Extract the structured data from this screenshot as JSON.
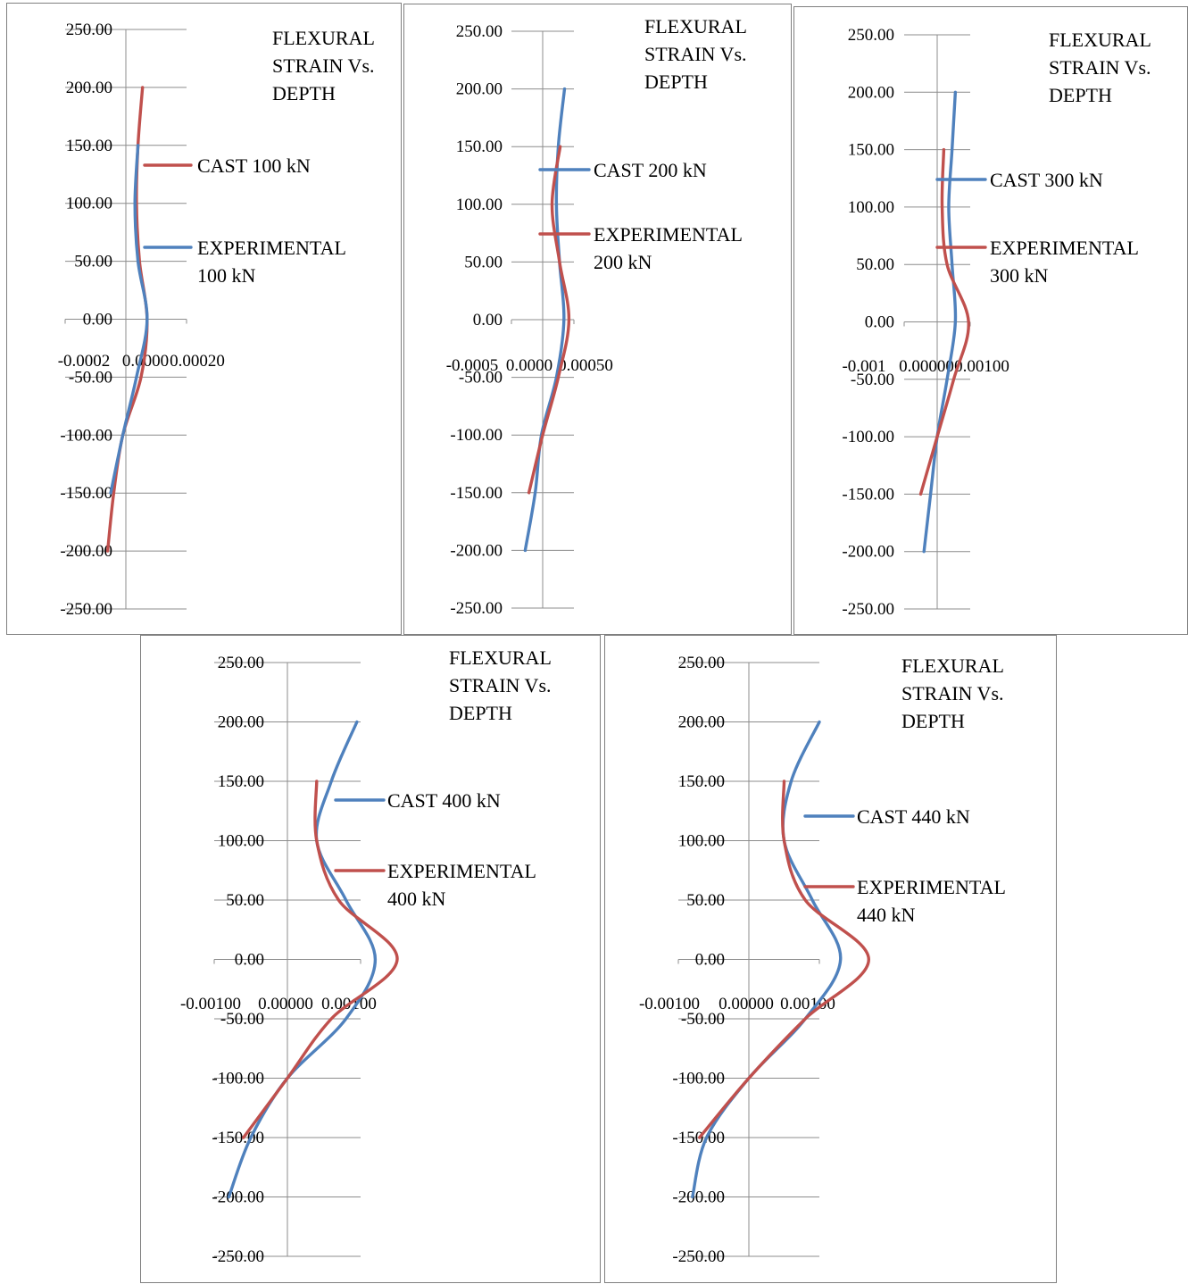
{
  "chart_data": [
    {
      "type": "line",
      "title_lines": [
        "FLEXURAL",
        "STRAIN Vs.",
        "DEPTH"
      ],
      "xlim": [
        -0.0002,
        0.0002
      ],
      "x_ticks": [
        "-0.0002",
        "0.0000",
        "0.00020"
      ],
      "ylim": [
        -250,
        250
      ],
      "y_ticks": [
        "250.00",
        "200.00",
        "150.00",
        "100.00",
        "50.00",
        "0.00",
        "-50.00",
        "-100.00",
        "-150.00",
        "-200.00",
        "-250.00"
      ],
      "grid": "horizontal",
      "series": [
        {
          "name_lines": [
            "CAST 100 kN"
          ],
          "color": "#c0504d",
          "points": [
            [
              5.5e-05,
              200
            ],
            [
              4e-05,
              150
            ],
            [
              3.5e-05,
              100
            ],
            [
              4.5e-05,
              50
            ],
            [
              7e-05,
              0
            ],
            [
              5e-05,
              -50
            ],
            [
              -1e-05,
              -100
            ],
            [
              -4e-05,
              -150
            ],
            [
              -6e-05,
              -200
            ]
          ]
        },
        {
          "name_lines": [
            "EXPERIMENTAL",
            "100 kN"
          ],
          "color": "#4f81bd",
          "points": [
            [
              4e-05,
              150
            ],
            [
              3e-05,
              100
            ],
            [
              4e-05,
              50
            ],
            [
              7e-05,
              0
            ],
            [
              3.5e-05,
              -50
            ],
            [
              -1e-05,
              -100
            ],
            [
              -5e-05,
              -150
            ]
          ]
        }
      ]
    },
    {
      "type": "line",
      "title_lines": [
        "FLEXURAL",
        "STRAIN Vs.",
        "DEPTH"
      ],
      "xlim": [
        -0.0005,
        0.0005
      ],
      "x_ticks": [
        "-0.0005",
        "0.0000",
        "0.00050"
      ],
      "ylim": [
        -250,
        250
      ],
      "y_ticks": [
        "250.00",
        "200.00",
        "150.00",
        "100.00",
        "50.00",
        "0.00",
        "-50.00",
        "-100.00",
        "-150.00",
        "-200.00",
        "-250.00"
      ],
      "grid": "horizontal",
      "series": [
        {
          "name_lines": [
            "CAST 200 kN"
          ],
          "color": "#4f81bd",
          "points": [
            [
              0.00035,
              200
            ],
            [
              0.00025,
              150
            ],
            [
              0.00022,
              100
            ],
            [
              0.00027,
              50
            ],
            [
              0.00034,
              0
            ],
            [
              0.00022,
              -50
            ],
            [
              -2e-05,
              -100
            ],
            [
              -0.00012,
              -150
            ],
            [
              -0.00028,
              -200
            ]
          ]
        },
        {
          "name_lines": [
            "EXPERIMENTAL",
            "200 kN"
          ],
          "color": "#c0504d",
          "points": [
            [
              0.00028,
              150
            ],
            [
              0.00015,
              100
            ],
            [
              0.00027,
              50
            ],
            [
              0.00042,
              0
            ],
            [
              0.00025,
              -50
            ],
            [
              0.0,
              -100
            ],
            [
              -0.00022,
              -150
            ]
          ]
        }
      ]
    },
    {
      "type": "line",
      "title_lines": [
        "FLEXURAL",
        "STRAIN Vs.",
        "DEPTH"
      ],
      "xlim": [
        -0.001,
        0.001
      ],
      "x_ticks": [
        "-0.001",
        "0.00000",
        "0.00100"
      ],
      "ylim": [
        -250,
        250
      ],
      "y_ticks": [
        "250.00",
        "200.00",
        "150.00",
        "100.00",
        "50.00",
        "0.00",
        "-50.00",
        "-100.00",
        "-150.00",
        "-200.00",
        "-250.00"
      ],
      "grid": "horizontal",
      "series": [
        {
          "name_lines": [
            "CAST 300 kN"
          ],
          "color": "#4f81bd",
          "points": [
            [
              0.00055,
              200
            ],
            [
              0.00045,
              150
            ],
            [
              0.00035,
              100
            ],
            [
              0.00045,
              50
            ],
            [
              0.00055,
              0
            ],
            [
              0.0003,
              -50
            ],
            [
              0.0,
              -100
            ],
            [
              -0.0002,
              -150
            ],
            [
              -0.0004,
              -200
            ]
          ]
        },
        {
          "name_lines": [
            "EXPERIMENTAL",
            "300 kN"
          ],
          "color": "#c0504d",
          "points": [
            [
              0.0002,
              150
            ],
            [
              0.00015,
              100
            ],
            [
              0.0003,
              50
            ],
            [
              0.00095,
              0
            ],
            [
              0.0005,
              -50
            ],
            [
              0.0,
              -100
            ],
            [
              -0.0005,
              -150
            ]
          ]
        }
      ]
    },
    {
      "type": "line",
      "title_lines": [
        "FLEXURAL",
        "STRAIN Vs.",
        "DEPTH"
      ],
      "xlim": [
        -0.001,
        0.001
      ],
      "x_ticks": [
        "-0.00100",
        "0.00000",
        "0.00100"
      ],
      "ylim": [
        -250,
        250
      ],
      "y_ticks": [
        "250.00",
        "200.00",
        "150.00",
        "100.00",
        "50.00",
        "0.00",
        "-50.00",
        "-100.00",
        "-150.00",
        "-200.00",
        "-250.00"
      ],
      "grid": "horizontal",
      "series": [
        {
          "name_lines": [
            "CAST 400 kN"
          ],
          "color": "#4f81bd",
          "points": [
            [
              0.00095,
              200
            ],
            [
              0.0006,
              150
            ],
            [
              0.0004,
              100
            ],
            [
              0.0008,
              50
            ],
            [
              0.0012,
              0
            ],
            [
              0.0008,
              -50
            ],
            [
              0.0,
              -100
            ],
            [
              -0.0005,
              -150
            ],
            [
              -0.0008,
              -200
            ]
          ]
        },
        {
          "name_lines": [
            "EXPERIMENTAL",
            "400 kN"
          ],
          "color": "#c0504d",
          "points": [
            [
              0.0004,
              150
            ],
            [
              0.0004,
              100
            ],
            [
              0.0007,
              50
            ],
            [
              0.0015,
              0
            ],
            [
              0.0006,
              -50
            ],
            [
              0.0,
              -100
            ],
            [
              -0.0006,
              -150
            ]
          ]
        }
      ]
    },
    {
      "type": "line",
      "title_lines": [
        "FLEXURAL",
        "STRAIN Vs.",
        "DEPTH"
      ],
      "xlim": [
        -0.001,
        0.001
      ],
      "x_ticks": [
        "-0.00100",
        "0.00000",
        "0.00100"
      ],
      "ylim": [
        -250,
        250
      ],
      "y_ticks": [
        "250.00",
        "200.00",
        "150.00",
        "100.00",
        "50.00",
        "0.00",
        "-50.00",
        "-100.00",
        "-150.00",
        "-200.00",
        "-250.00"
      ],
      "grid": "horizontal",
      "series": [
        {
          "name_lines": [
            "CAST 440 kN"
          ],
          "color": "#4f81bd",
          "points": [
            [
              0.001,
              200
            ],
            [
              0.0006,
              150
            ],
            [
              0.0005,
              100
            ],
            [
              0.0009,
              50
            ],
            [
              0.0013,
              0
            ],
            [
              0.0008,
              -50
            ],
            [
              0.0,
              -100
            ],
            [
              -0.0006,
              -150
            ],
            [
              -0.0008,
              -200
            ]
          ]
        },
        {
          "name_lines": [
            "EXPERIMENTAL",
            "440 kN"
          ],
          "color": "#c0504d",
          "points": [
            [
              0.0005,
              150
            ],
            [
              0.0005,
              100
            ],
            [
              0.0008,
              50
            ],
            [
              0.0017,
              0
            ],
            [
              0.0008,
              -50
            ],
            [
              0.0,
              -100
            ],
            [
              -0.0007,
              -150
            ]
          ]
        }
      ]
    }
  ]
}
